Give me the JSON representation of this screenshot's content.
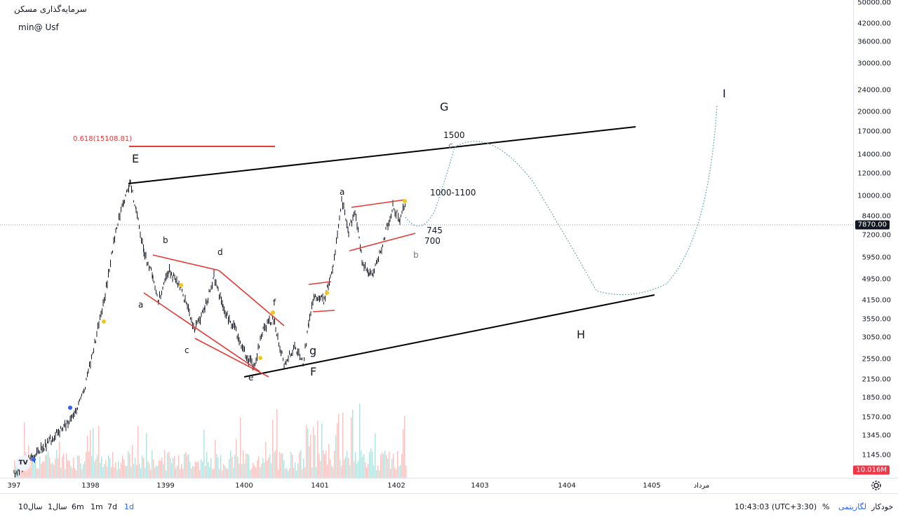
{
  "header": {
    "symbol_title": "سرمایه‌گذاری مسکن",
    "indicator": "min@ Usf"
  },
  "price_axis": {
    "ticks": [
      "50000.00",
      "42000.00",
      "36000.00",
      "30000.00",
      "24000.00",
      "20000.00",
      "17000.00",
      "14000.00",
      "12000.00",
      "10000.00",
      "8400.00",
      "7200.00",
      "5950.00",
      "4950.00",
      "4150.00",
      "3550.00",
      "3050.00",
      "2550.00",
      "2150.00",
      "1850.00",
      "1570.00",
      "1345.00",
      "1145.00"
    ],
    "last_price": "7870.00",
    "volume_label": "10.016M",
    "last_price_color": "#131722",
    "volume_color": "#f23645"
  },
  "time_axis": {
    "ticks": [
      "397",
      "1398",
      "1399",
      "1400",
      "1401",
      "1402",
      "1403",
      "1404",
      "1405",
      "مرداد"
    ]
  },
  "annotations": {
    "wave_E": "E",
    "wave_F": "F",
    "wave_G": "G",
    "wave_H": "H",
    "wave_I": "I",
    "fib": "0.618(15108.81)",
    "a1": "a",
    "b1": "b",
    "c1": "c",
    "d1": "d",
    "e1": "e",
    "f1": "f",
    "g1": "g",
    "a2": "a",
    "b2": "b",
    "c2": "c",
    "target_1500": "1500",
    "target_1000": "1000-1100",
    "level_745": "745",
    "level_700": "700"
  },
  "bottom_bar": {
    "ranges": [
      "10سال",
      "1سال",
      "6m",
      "1m",
      "7d",
      "1d"
    ],
    "time": "10:43:03 (UTC+3:30)",
    "percent": "%",
    "log": "لگاریتمی",
    "auto": "خودکار"
  },
  "colors": {
    "candle": "#131722",
    "channel": "#000000",
    "wedge": "#e53935",
    "projection": "#4a9ca8",
    "accent": "#2962ff",
    "fib_line": "#e53935"
  }
}
